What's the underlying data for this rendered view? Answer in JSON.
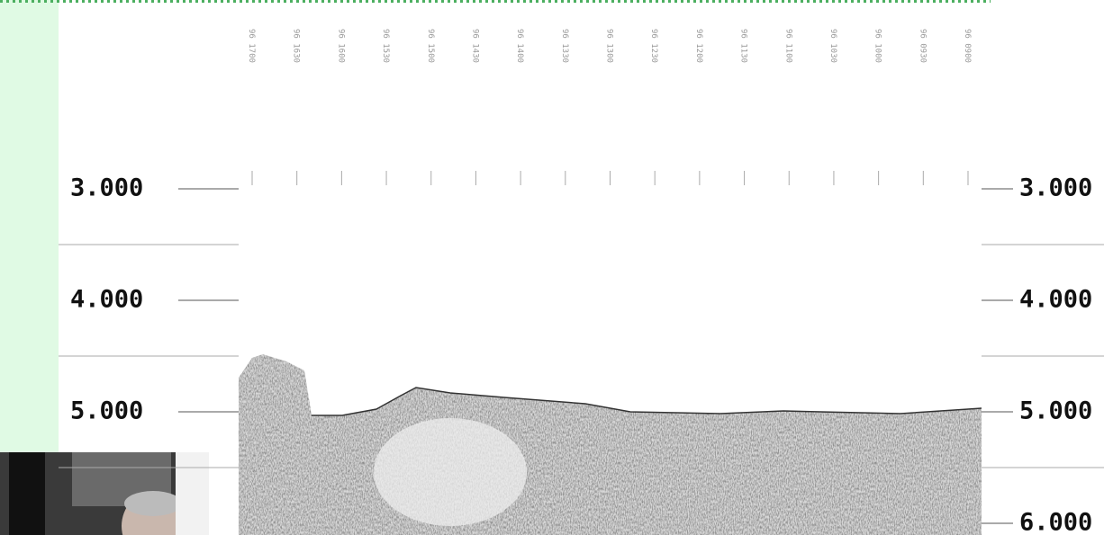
{
  "depth_labels_left": [
    "3.000",
    "4.000",
    "5.000"
  ],
  "depth_labels_right": [
    "3.000",
    "4.000",
    "5.000",
    "6.000"
  ],
  "time_labels": [
    "96 1700",
    "96 1630",
    "96 1600",
    "96 1530",
    "96 1500",
    "96 1430",
    "96 1400",
    "96 1330",
    "96 1300",
    "96 1230",
    "96 1200",
    "96 1130",
    "96 1100",
    "96 1030",
    "96 1000",
    "96 0930",
    "96 0900"
  ]
}
